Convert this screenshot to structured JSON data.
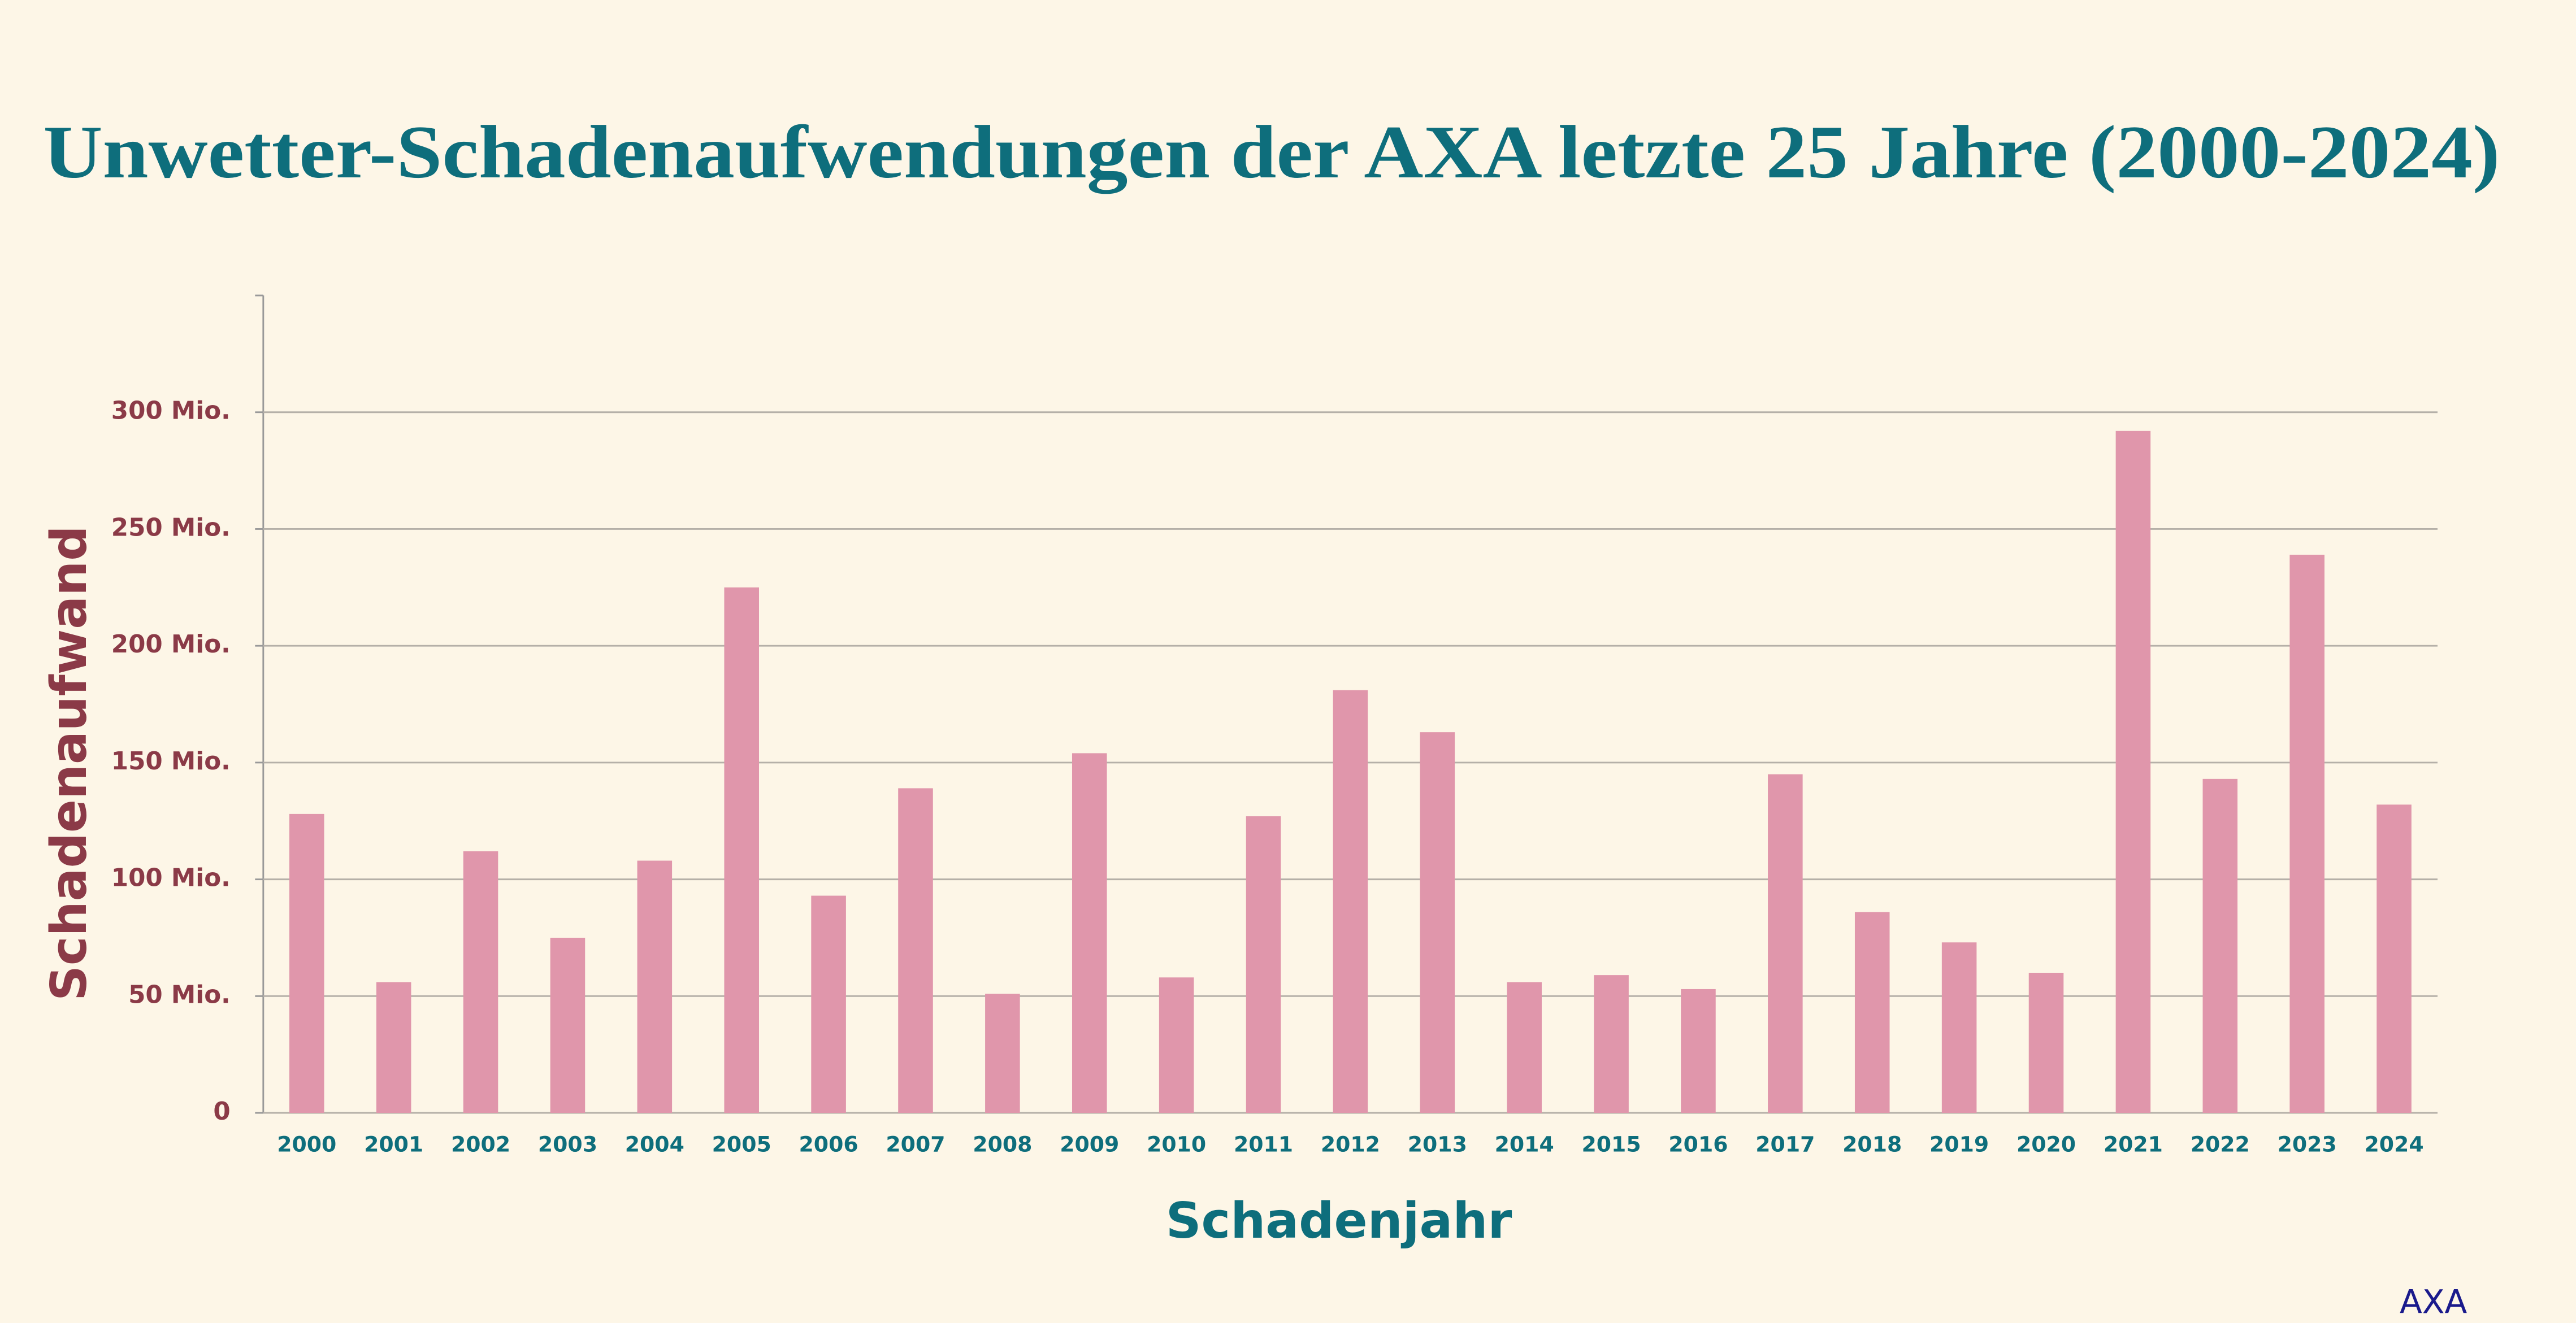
{
  "chart_data": {
    "type": "bar",
    "title": "Unwetter-Schadenaufwendungen der AXA letzte 25 Jahre (2000-2024)",
    "x_label": "Schadenjahr",
    "y_label": "Schadenaufwand",
    "credit": "AXA",
    "categories": [
      "2000",
      "2001",
      "2002",
      "2003",
      "2004",
      "2005",
      "2006",
      "2007",
      "2008",
      "2009",
      "2010",
      "2011",
      "2012",
      "2013",
      "2014",
      "2015",
      "2016",
      "2017",
      "2018",
      "2019",
      "2020",
      "2021",
      "2022",
      "2023",
      "2024"
    ],
    "values": [
      128,
      56,
      112,
      75,
      108,
      225,
      93,
      139,
      51,
      154,
      58,
      127,
      181,
      163,
      56,
      59,
      53,
      145,
      86,
      73,
      60,
      292,
      143,
      239,
      132
    ],
    "color": "#e096ab",
    "ylim": [
      0,
      350
    ],
    "yticks": [
      0,
      {
        "value": 50,
        "label": "50 Mio."
      },
      {
        "value": 100,
        "label": "100 Mio."
      },
      {
        "value": 150,
        "label": "150 Mio."
      },
      {
        "value": 200,
        "label": "200 Mio."
      },
      {
        "value": 250,
        "label": "250 Mio."
      },
      {
        "value": 300,
        "label": "300 Mio."
      }
    ],
    "grid": true
  }
}
